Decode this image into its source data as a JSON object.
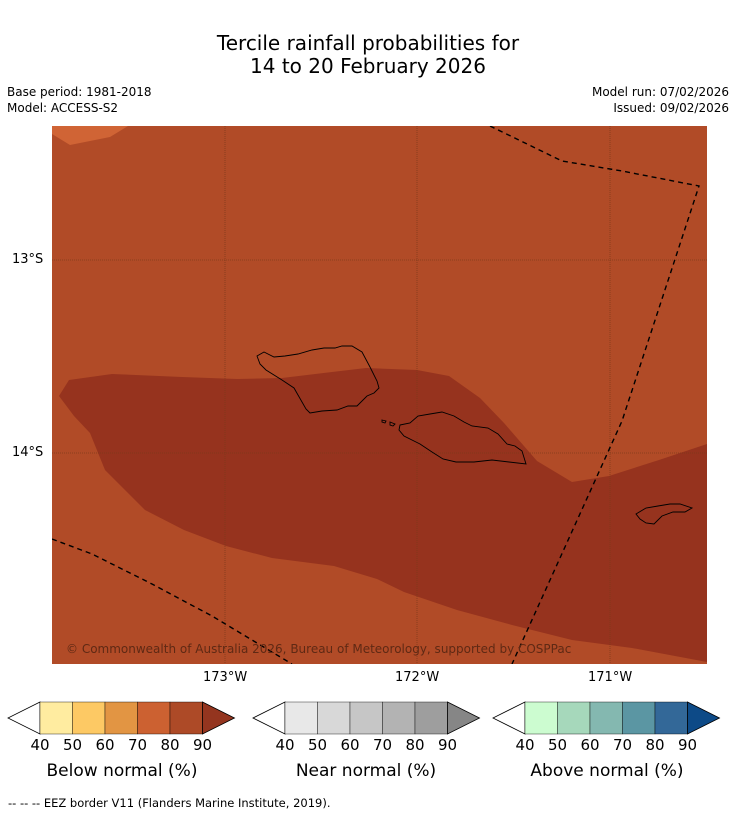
{
  "header": {
    "title_line1": "Tercile rainfall probabilities for",
    "title_line2": "14 to 20 February 2026",
    "base_period": "Base period: 1981-2018",
    "model": "Model: ACCESS-S2",
    "model_run": "Model run: 07/02/2026",
    "issued": "Issued: 09/02/2026"
  },
  "map": {
    "lat_ticks": [
      "13°S",
      "14°S"
    ],
    "lon_ticks": [
      "173°W",
      "172°W",
      "171°W"
    ],
    "copyright": "© Commonwealth of Australia 2026, Bureau of Meteorology, supported by COSPPac",
    "colors": {
      "below_70_80": "#d06435",
      "below_80_90": "#b14b27",
      "below_90_plus": "#96331e",
      "graticule": "#7a3a1a",
      "eez_line": "#000000"
    }
  },
  "colorbars": [
    {
      "name": "Below normal (%)",
      "ticks": [
        "40",
        "50",
        "60",
        "70",
        "80",
        "90"
      ],
      "colors": [
        "#ffeca0",
        "#fdc964",
        "#e29543",
        "#cc6131",
        "#ad4a27",
        "#94351f"
      ]
    },
    {
      "name": "Near normal (%)",
      "ticks": [
        "40",
        "50",
        "60",
        "70",
        "80",
        "90"
      ],
      "colors": [
        "#e8e8e8",
        "#d8d8d8",
        "#c6c6c6",
        "#b3b3b3",
        "#9e9e9e",
        "#868686"
      ]
    },
    {
      "name": "Above normal (%)",
      "ticks": [
        "40",
        "50",
        "60",
        "70",
        "80",
        "90"
      ],
      "colors": [
        "#ccfcd0",
        "#a6d8bb",
        "#84b8b0",
        "#5b96a3",
        "#336898",
        "#0d4a87"
      ]
    }
  ],
  "footnote": "--  --  -- EEZ border V11 (Flanders Marine Institute, 2019)."
}
